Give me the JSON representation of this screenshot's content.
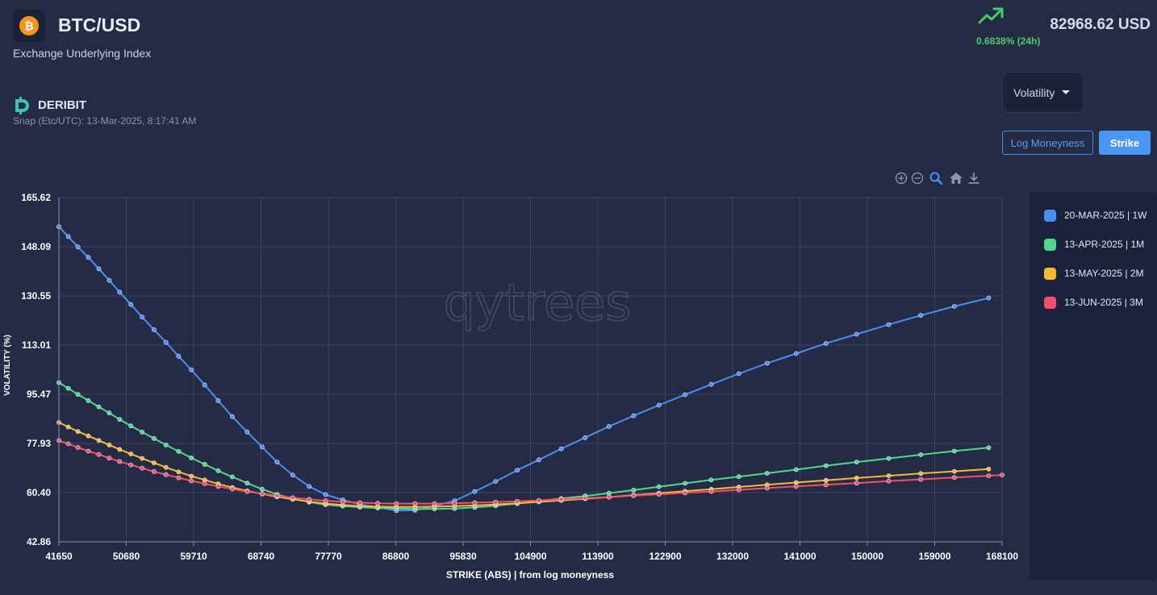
{
  "header": {
    "pair": "BTC/USD",
    "coin_glyph": "₿",
    "subtitle": "Exchange Underlying Index",
    "price": "82968.62 USD",
    "change": "0.6838% (24h)",
    "trend_icon": "trending-up-icon"
  },
  "source": {
    "name": "DERIBIT",
    "snap": "Snap (Etc/UTC): 13-Mar-2025, 8:17:41 AM"
  },
  "controls": {
    "metric_select": "Volatility",
    "log_moneyness_label": "Log Moneyness",
    "strike_label": "Strike"
  },
  "toolbar": [
    "zoom-in-icon",
    "zoom-out-icon",
    "zoom-select-icon",
    "home-icon",
    "download-icon"
  ],
  "watermark": "qytrees",
  "colors": {
    "w1": "#4a8ff0",
    "m1": "#4ed98a",
    "m2": "#f5b935",
    "m3": "#f0506b",
    "accent": "#4a95f2"
  },
  "chart_data": {
    "type": "line",
    "xlabel": "STRIKE (ABS) | from log moneyness",
    "ylabel": "VOLATILITY (%)",
    "xlim": [
      41650,
      168100
    ],
    "ylim": [
      42.86,
      165.62
    ],
    "x_ticks": [
      "41650",
      "50680",
      "59710",
      "68740",
      "77770",
      "86800",
      "95830",
      "104900",
      "113900",
      "122900",
      "132000",
      "141000",
      "150000",
      "159000",
      "168100"
    ],
    "y_ticks": [
      "42.86",
      "60.40",
      "77.93",
      "95.47",
      "113.01",
      "130.55",
      "148.09",
      "165.62"
    ],
    "grid": true,
    "legend_position": "right",
    "series": [
      {
        "name": "20-MAR-2025 | 1W",
        "color": "#4a8ff0",
        "x": [
          41650,
          42900,
          44200,
          45600,
          47000,
          48400,
          49800,
          51300,
          52800,
          54400,
          56000,
          57700,
          59400,
          61200,
          63000,
          64900,
          66900,
          68900,
          70900,
          73000,
          75200,
          77400,
          79700,
          82000,
          84400,
          86900,
          89400,
          92000,
          94700,
          97400,
          100200,
          103100,
          106000,
          109000,
          112200,
          115400,
          118700,
          122100,
          125600,
          129100,
          132800,
          136600,
          140500,
          144500,
          148600,
          152900,
          157200,
          161700,
          166300
        ],
        "y": [
          155.2,
          151.7,
          148.0,
          144.3,
          140.2,
          136.1,
          131.9,
          127.5,
          123.0,
          118.5,
          114.0,
          109.0,
          104.2,
          98.8,
          93.2,
          87.5,
          82.0,
          76.7,
          71.3,
          66.7,
          62.6,
          59.7,
          57.8,
          56.2,
          55.2,
          54.0,
          54.1,
          55.6,
          57.5,
          60.8,
          64.4,
          68.4,
          72.1,
          76.0,
          80.0,
          84.0,
          87.8,
          91.6,
          95.3,
          99.0,
          102.8,
          106.5,
          110.0,
          113.6,
          116.9,
          120.3,
          123.6,
          126.8,
          129.8
        ]
      },
      {
        "name": "13-APR-2025 | 1M",
        "color": "#4ed98a",
        "x": [
          41650,
          42900,
          44200,
          45600,
          47000,
          48400,
          49800,
          51300,
          52800,
          54400,
          56000,
          57700,
          59400,
          61200,
          63000,
          64900,
          66900,
          68900,
          70900,
          73000,
          75200,
          77400,
          79700,
          82000,
          84400,
          86900,
          89400,
          92000,
          94700,
          97400,
          100200,
          103100,
          106000,
          109000,
          112200,
          115400,
          118700,
          122100,
          125600,
          129100,
          132800,
          136600,
          140500,
          144500,
          148600,
          152900,
          157200,
          161700,
          166300
        ],
        "y": [
          99.6,
          97.6,
          95.4,
          93.2,
          91.0,
          88.8,
          86.5,
          84.2,
          82.0,
          79.7,
          77.4,
          75.1,
          72.8,
          70.5,
          68.2,
          66.0,
          63.8,
          61.6,
          59.8,
          58.3,
          57.0,
          56.1,
          55.6,
          55.2,
          54.9,
          54.7,
          54.6,
          54.6,
          54.7,
          55.1,
          55.7,
          56.5,
          57.4,
          58.3,
          59.2,
          60.2,
          61.3,
          62.5,
          63.7,
          64.9,
          66.1,
          67.3,
          68.6,
          70.0,
          71.3,
          72.6,
          73.9,
          75.2,
          76.4
        ]
      },
      {
        "name": "13-MAY-2025 | 2M",
        "color": "#f5b935",
        "x": [
          41650,
          42900,
          44200,
          45600,
          47000,
          48400,
          49800,
          51300,
          52800,
          54400,
          56000,
          57700,
          59400,
          61200,
          63000,
          64900,
          66900,
          68900,
          70900,
          73000,
          75200,
          77400,
          79700,
          82000,
          84400,
          86900,
          89400,
          92000,
          94700,
          97400,
          100200,
          103100,
          106000,
          109000,
          112200,
          115400,
          118700,
          122100,
          125600,
          129100,
          132800,
          136600,
          140500,
          144500,
          148600,
          152900,
          157200,
          161700,
          166300
        ],
        "y": [
          85.4,
          83.8,
          82.2,
          80.6,
          79.0,
          77.4,
          75.8,
          74.2,
          72.6,
          71.0,
          69.4,
          67.8,
          66.3,
          64.9,
          63.5,
          62.2,
          61.0,
          59.9,
          58.9,
          58.0,
          57.2,
          56.5,
          56.0,
          55.6,
          55.4,
          55.3,
          55.3,
          55.4,
          55.6,
          55.8,
          56.2,
          56.6,
          57.1,
          57.6,
          58.2,
          58.8,
          59.5,
          60.2,
          60.9,
          61.6,
          62.4,
          63.2,
          64.0,
          64.8,
          65.6,
          66.4,
          67.2,
          68.0,
          68.8
        ]
      },
      {
        "name": "13-JUN-2025 | 3M",
        "color": "#f0506b",
        "x": [
          41650,
          42900,
          44200,
          45600,
          47000,
          48400,
          49800,
          51300,
          52800,
          54400,
          56000,
          57700,
          59400,
          61200,
          63000,
          64900,
          66900,
          68900,
          70900,
          73000,
          75200,
          77400,
          79700,
          82000,
          84400,
          86900,
          89400,
          92000,
          94700,
          97400,
          100200,
          103100,
          106000,
          109000,
          112200,
          115400,
          118700,
          122100,
          125600,
          129100,
          132800,
          136600,
          140500,
          144500,
          148600,
          152900,
          157200,
          161700,
          166300,
          168100
        ],
        "y": [
          79.0,
          77.8,
          76.5,
          75.2,
          74.0,
          72.7,
          71.5,
          70.3,
          69.1,
          67.9,
          66.8,
          65.7,
          64.6,
          63.6,
          62.6,
          61.7,
          60.8,
          60.0,
          59.3,
          58.6,
          58.0,
          57.5,
          57.1,
          56.8,
          56.6,
          56.5,
          56.5,
          56.5,
          56.6,
          56.8,
          57.0,
          57.3,
          57.6,
          58.0,
          58.4,
          58.8,
          59.3,
          59.8,
          60.3,
          60.8,
          61.4,
          62.0,
          62.6,
          63.2,
          63.8,
          64.5,
          65.1,
          65.8,
          66.4,
          66.7
        ]
      }
    ]
  }
}
